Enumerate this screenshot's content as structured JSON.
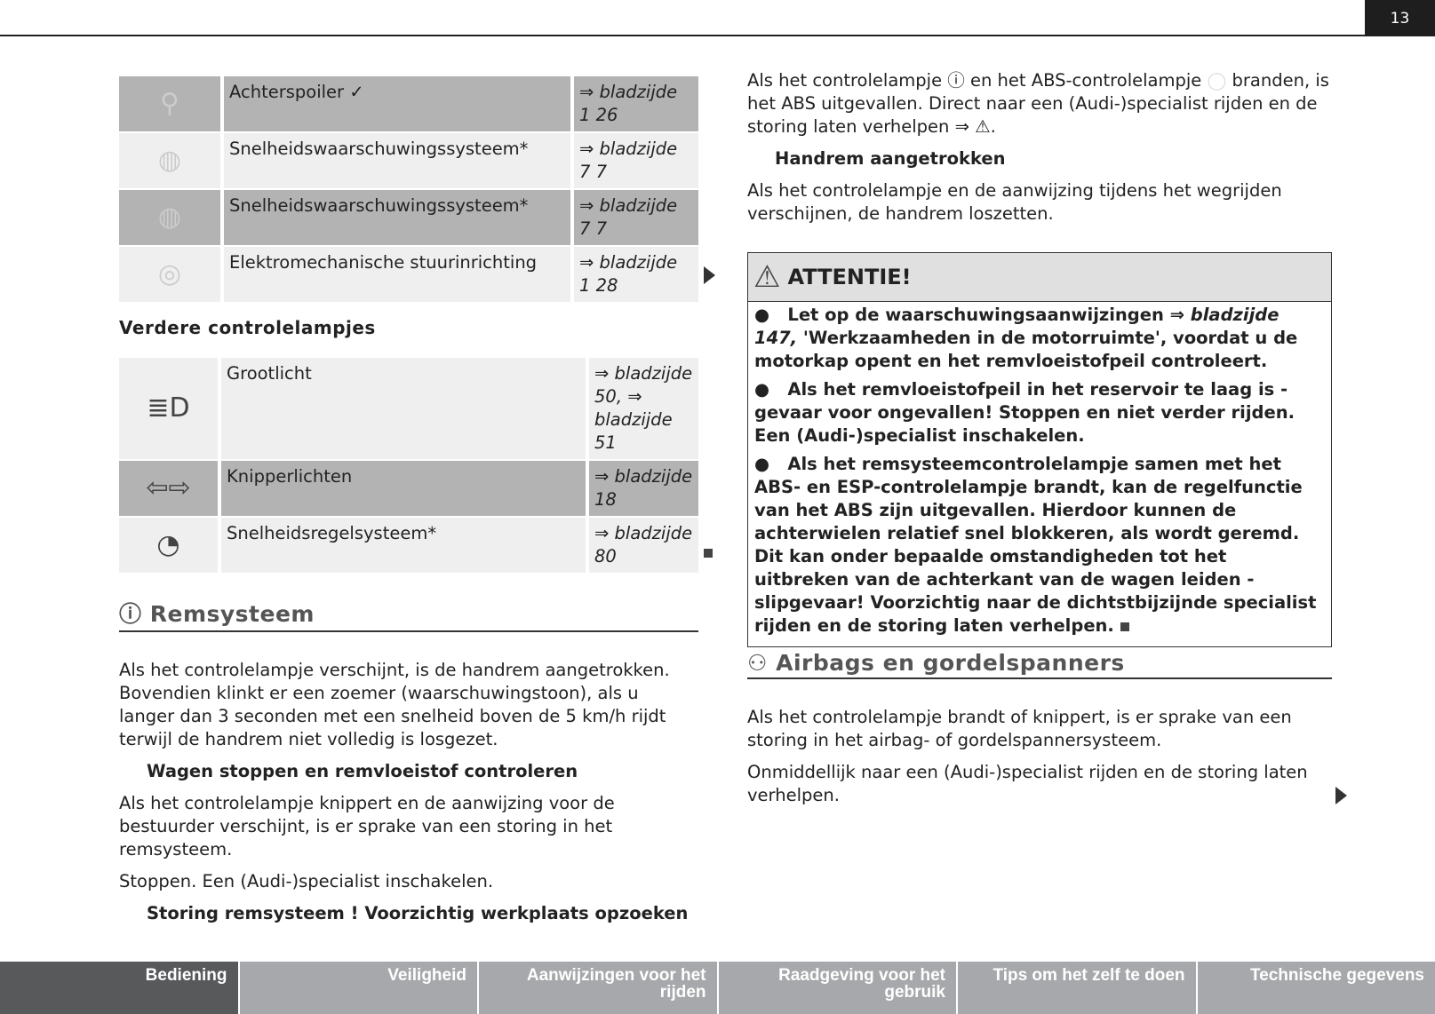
{
  "page_number": "13",
  "table1": [
    {
      "icon": "rear-spoiler-icon",
      "name": "Achterspoiler ✓",
      "ref": "⇒ bladzijde 1 26",
      "shade": "dark"
    },
    {
      "icon": "speed-warning-icon",
      "name": "Snelheidswaarschuwingssysteem*",
      "ref": "⇒ bladzijde 7 7",
      "shade": "light"
    },
    {
      "icon": "speed-warning-icon",
      "name": "Snelheidswaarschuwingssysteem*",
      "ref": "⇒ bladzijde 7 7",
      "shade": "dark"
    },
    {
      "icon": "steering-wheel-icon",
      "name": "Elektromechanische stuurinrichting",
      "ref": "⇒ bladzijde 1 28",
      "shade": "light"
    }
  ],
  "further_heading": "Verdere controlelampjes",
  "table2": [
    {
      "icon": "high-beam-icon",
      "glyph": "≣D",
      "name": "Grootlicht",
      "ref": "⇒ bladzijde 50, ⇒ bladzijde 51",
      "shade": "light"
    },
    {
      "icon": "turn-signal-icon",
      "glyph": "⇦⇨",
      "name": "Knipperlichten",
      "ref": "⇒ bladzijde 18",
      "shade": "dark"
    },
    {
      "icon": "cruise-control-icon",
      "glyph": "◔",
      "name": "Snelheidsregelsysteem*",
      "ref": "⇒ bladzijde 80",
      "shade": "light"
    }
  ],
  "brakes": {
    "heading": "Remsysteem",
    "p1": "Als het controlelampje verschijnt, is de handrem aangetrokken. Bovendien klinkt er een zoemer (waarschuwingstoon), als u langer dan 3 seconden met een snelheid boven de 5 km/h rijdt terwijl de handrem niet volledig is losgezet.",
    "sub1": "Wagen stoppen en remvloeistof controleren",
    "p2": "Als het controlelampje knippert en de aanwijzing voor de bestuurder verschijnt, is er sprake van een storing in het remsysteem.",
    "p3": "Stoppen. Een (Audi-)specialist inschakelen.",
    "sub2": "Storing remsysteem ! Voorzichtig werkplaats opzoeken"
  },
  "right": {
    "p1a": "Als het controlelampje",
    "p1b": "en het ABS-controlelampje",
    "p1c": "branden, is het ABS uitgevallen. Direct naar een (Audi-)specialist rijden en de storing laten verhelpen ⇒",
    "sub": "Handrem aangetrokken",
    "p2": "Als het controlelampje en de aanwijzing tijdens het wegrijden verschijnen, de handrem loszetten."
  },
  "attention": {
    "title": "ATTENTIE!",
    "b1a": "Let op de waarschuwingsaanwijzingen ⇒ ",
    "b1ref": "bladzijde 147,",
    "b1b": " 'Werkzaamheden in de motorruimte', voordat u de motorkap opent en het remvloeistofpeil controleert.",
    "b2": "Als het remvloeistofpeil in het reservoir te laag is - gevaar voor ongevallen! Stoppen en niet verder rijden. Een (Audi-)specialist inschakelen.",
    "b3": "Als het remsysteemcontrolelampje samen met het ABS- en ESP-controlelampje brandt, kan de regelfunctie van het ABS zijn uitgevallen. Hierdoor kunnen de achterwielen relatief snel blokkeren, als wordt geremd. Dit kan onder bepaalde omstandigheden tot het uitbreken van de achterkant van de wagen leiden - slipgevaar! Voorzichtig naar de dichtstbijzijnde specialist rijden en de storing laten verhelpen."
  },
  "airbags": {
    "heading": "Airbags en gordelspanners",
    "p1": "Als het controlelampje brandt of knippert, is er sprake van een storing in het airbag- of gordelspannersysteem.",
    "p2": "Onmiddellijk naar een (Audi-)specialist rijden en de storing laten verhelpen."
  },
  "footer_tabs": [
    "Bediening",
    "Veiligheid",
    "Aanwijzingen voor het rijden",
    "Raadgeving voor het gebruik",
    "Tips om het zelf te doen",
    "Technische gegevens"
  ],
  "active_tab": "Bediening"
}
